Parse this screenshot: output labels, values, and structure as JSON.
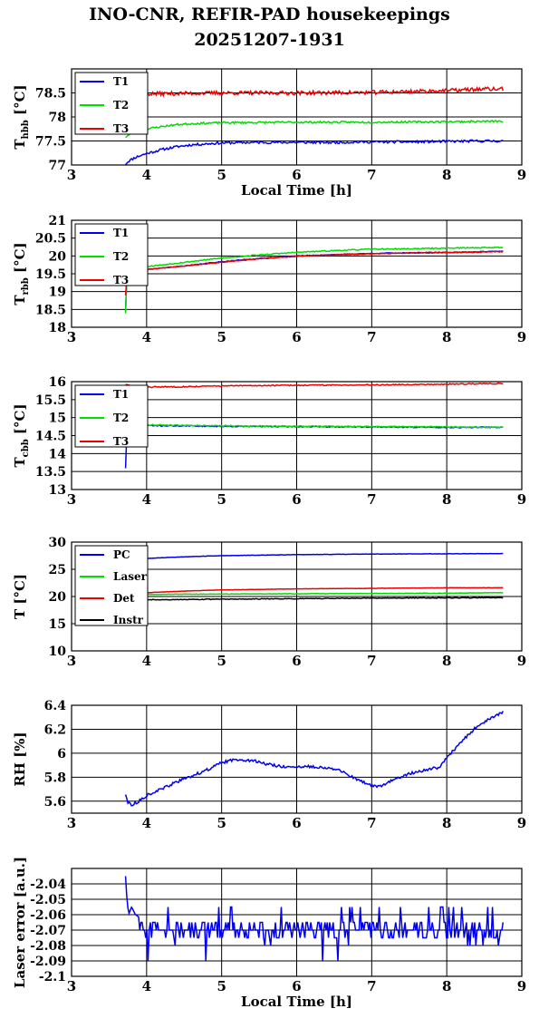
{
  "title_line1": "INO-CNR, REFIR-PAD housekeepings",
  "title_line2": "20251207-1931",
  "chart_data": [
    {
      "type": "line",
      "ylabel": "T",
      "ylabel_sub": "hbb",
      "ylabel_unit": "[°C]",
      "xlabel": "Local Time [h]",
      "xlim": [
        3,
        9
      ],
      "ylim": [
        77,
        79
      ],
      "xticks": [
        "3",
        "4",
        "5",
        "6",
        "7",
        "8",
        "9"
      ],
      "yticks": [
        "77",
        "77.5",
        "78",
        "78.5"
      ],
      "ytick_values": [
        77,
        77.5,
        78,
        78.5
      ],
      "grid": true,
      "legend_position": "top-left",
      "series": [
        {
          "name": "T1",
          "color": "#0000ee",
          "noise": 0.025,
          "seed": 11,
          "x": [
            3.72,
            3.76,
            3.85,
            4.0,
            4.2,
            4.4,
            4.6,
            4.8,
            5.0,
            5.5,
            6.0,
            6.5,
            7.0,
            7.5,
            8.0,
            8.5,
            8.75
          ],
          "y": [
            77.02,
            77.08,
            77.16,
            77.24,
            77.32,
            77.38,
            77.42,
            77.44,
            77.46,
            77.47,
            77.47,
            77.47,
            77.48,
            77.48,
            77.49,
            77.5,
            77.5
          ]
        },
        {
          "name": "T2",
          "color": "#00dd00",
          "noise": 0.02,
          "seed": 23,
          "x": [
            3.72,
            3.8,
            4.0,
            4.2,
            4.4,
            4.6,
            5.0,
            6.0,
            7.0,
            8.0,
            8.75
          ],
          "y": [
            77.58,
            77.66,
            77.75,
            77.8,
            77.84,
            77.86,
            77.88,
            77.89,
            77.89,
            77.9,
            77.91
          ]
        },
        {
          "name": "T3",
          "color": "#ee0000",
          "noise": 0.04,
          "seed": 37,
          "x": [
            3.72,
            4.0,
            5.0,
            6.0,
            7.0,
            7.5,
            8.0,
            8.5,
            8.75
          ],
          "y": [
            78.47,
            78.48,
            78.5,
            78.5,
            78.51,
            78.53,
            78.55,
            78.58,
            78.58
          ]
        }
      ]
    },
    {
      "type": "line",
      "ylabel": "T",
      "ylabel_sub": "rbb",
      "ylabel_unit": "[°C]",
      "xlabel": "",
      "xlim": [
        3,
        9
      ],
      "ylim": [
        18,
        21
      ],
      "xticks": [
        "3",
        "4",
        "5",
        "6",
        "7",
        "8",
        "9"
      ],
      "yticks": [
        "18",
        "18.5",
        "19",
        "19.5",
        "20",
        "20.5",
        "21"
      ],
      "ytick_values": [
        18,
        18.5,
        19,
        19.5,
        20,
        20.5,
        21
      ],
      "grid": true,
      "legend_position": "top-left",
      "series": [
        {
          "name": "T1",
          "color": "#0000ee",
          "noise": 0.01,
          "seed": 41,
          "x": [
            3.72,
            3.74,
            3.8,
            4.0,
            4.5,
            5.0,
            5.5,
            6.0,
            6.5,
            7.0,
            7.5,
            8.0,
            8.75
          ],
          "y": [
            18.45,
            19.55,
            19.6,
            19.62,
            19.72,
            19.84,
            19.93,
            20.0,
            20.04,
            20.07,
            20.09,
            20.1,
            20.13
          ]
        },
        {
          "name": "T2",
          "color": "#00dd00",
          "noise": 0.015,
          "seed": 53,
          "x": [
            3.72,
            3.74,
            3.8,
            4.0,
            4.5,
            5.0,
            5.5,
            6.0,
            6.5,
            7.0,
            7.5,
            8.0,
            8.75
          ],
          "y": [
            18.4,
            19.6,
            19.65,
            19.7,
            19.82,
            19.94,
            20.03,
            20.1,
            20.15,
            20.19,
            20.2,
            20.22,
            20.24
          ]
        },
        {
          "name": "T3",
          "color": "#ee0000",
          "noise": 0.01,
          "seed": 67,
          "x": [
            3.72,
            3.74,
            3.8,
            4.0,
            4.5,
            5.0,
            5.5,
            6.0,
            6.5,
            7.0,
            7.5,
            8.0,
            8.75
          ],
          "y": [
            18.9,
            19.5,
            19.58,
            19.62,
            19.72,
            19.82,
            19.92,
            19.99,
            20.03,
            20.06,
            20.08,
            20.09,
            20.12
          ]
        }
      ]
    },
    {
      "type": "line",
      "ylabel": "T",
      "ylabel_sub": "cbb",
      "ylabel_unit": "[°C]",
      "xlabel": "",
      "xlim": [
        3,
        9
      ],
      "ylim": [
        13,
        16
      ],
      "xticks": [
        "3",
        "4",
        "5",
        "6",
        "7",
        "8",
        "9"
      ],
      "yticks": [
        "13",
        "13.5",
        "14",
        "14.5",
        "15",
        "15.5",
        "16"
      ],
      "ytick_values": [
        13,
        13.5,
        14,
        14.5,
        15,
        15.5,
        16
      ],
      "grid": true,
      "legend_position": "top-left",
      "series": [
        {
          "name": "T1",
          "color": "#0000ee",
          "noise": 0.015,
          "seed": 71,
          "x": [
            3.72,
            3.73,
            3.74,
            3.8,
            4.0,
            5.0,
            6.0,
            7.0,
            8.0,
            8.75
          ],
          "y": [
            13.6,
            14.2,
            14.75,
            14.8,
            14.78,
            14.76,
            14.75,
            14.74,
            14.73,
            14.73
          ]
        },
        {
          "name": "T2",
          "color": "#00dd00",
          "noise": 0.015,
          "seed": 79,
          "x": [
            3.72,
            3.74,
            3.8,
            4.0,
            5.0,
            6.0,
            7.0,
            8.0,
            8.75
          ],
          "y": [
            14.5,
            14.78,
            14.82,
            14.8,
            14.77,
            14.76,
            14.75,
            14.74,
            14.73
          ]
        },
        {
          "name": "T3",
          "color": "#ee0000",
          "noise": 0.015,
          "seed": 83,
          "x": [
            3.72,
            3.8,
            4.0,
            4.5,
            5.0,
            6.0,
            7.0,
            8.0,
            8.75
          ],
          "y": [
            15.92,
            15.88,
            15.85,
            15.86,
            15.88,
            15.9,
            15.91,
            15.93,
            15.95
          ]
        }
      ]
    },
    {
      "type": "line",
      "ylabel": "T [°C]",
      "xlabel": "",
      "xlim": [
        3,
        9
      ],
      "ylim": [
        10,
        30
      ],
      "xticks": [
        "3",
        "4",
        "5",
        "6",
        "7",
        "8",
        "9"
      ],
      "yticks": [
        "10",
        "15",
        "20",
        "25",
        "30"
      ],
      "ytick_values": [
        10,
        15,
        20,
        25,
        30
      ],
      "grid": true,
      "legend_position": "top-left",
      "series": [
        {
          "name": "PC",
          "color": "#0000ee",
          "noise": 0.03,
          "seed": 89,
          "x": [
            3.72,
            3.8,
            4.0,
            4.5,
            5.0,
            6.0,
            7.0,
            8.0,
            8.75
          ],
          "y": [
            26.5,
            26.7,
            27.0,
            27.3,
            27.5,
            27.7,
            27.8,
            27.85,
            27.9
          ]
        },
        {
          "name": "Laser",
          "color": "#00dd00",
          "noise": 0.04,
          "seed": 97,
          "x": [
            3.72,
            4.0,
            5.0,
            6.0,
            7.0,
            8.0,
            8.75
          ],
          "y": [
            20.4,
            20.4,
            20.45,
            20.5,
            20.55,
            20.6,
            20.7
          ]
        },
        {
          "name": "Det",
          "color": "#ee0000",
          "noise": 0.02,
          "seed": 101,
          "x": [
            3.72,
            4.0,
            4.5,
            5.0,
            6.0,
            7.0,
            8.0,
            8.75
          ],
          "y": [
            20.5,
            20.7,
            21.0,
            21.2,
            21.4,
            21.5,
            21.6,
            21.6
          ]
        },
        {
          "name": "Instr",
          "color": "#000000",
          "noise": 0.06,
          "seed": 107,
          "x": [
            3.72,
            4.0,
            5.0,
            6.0,
            7.0,
            8.0,
            8.75
          ],
          "y": [
            19.3,
            19.4,
            19.5,
            19.6,
            19.7,
            19.75,
            19.8
          ]
        }
      ]
    },
    {
      "type": "line",
      "ylabel": "RH [%]",
      "xlabel": "",
      "xlim": [
        3,
        9
      ],
      "ylim": [
        5.5,
        6.4
      ],
      "xticks": [
        "3",
        "4",
        "5",
        "6",
        "7",
        "8",
        "9"
      ],
      "yticks": [
        "5.6",
        "5.8",
        "6",
        "6.2",
        "6.4"
      ],
      "ytick_values": [
        5.6,
        5.8,
        6,
        6.2,
        6.4
      ],
      "grid": true,
      "legend_position": "none",
      "series": [
        {
          "color": "#0000ee",
          "noise": 0.012,
          "seed": 113,
          "x": [
            3.72,
            3.75,
            3.8,
            3.9,
            4.0,
            4.2,
            4.4,
            4.6,
            4.8,
            5.0,
            5.2,
            5.4,
            5.6,
            5.8,
            6.0,
            6.2,
            6.4,
            6.6,
            6.8,
            7.0,
            7.1,
            7.3,
            7.5,
            7.7,
            7.9,
            8.0,
            8.2,
            8.4,
            8.6,
            8.75
          ],
          "y": [
            5.66,
            5.59,
            5.57,
            5.6,
            5.65,
            5.7,
            5.76,
            5.81,
            5.86,
            5.92,
            5.95,
            5.94,
            5.91,
            5.89,
            5.88,
            5.89,
            5.88,
            5.85,
            5.78,
            5.73,
            5.72,
            5.78,
            5.83,
            5.86,
            5.88,
            5.96,
            6.1,
            6.22,
            6.3,
            6.34
          ]
        }
      ]
    },
    {
      "type": "line",
      "ylabel": "Laser error [a.u.]",
      "xlabel": "Local Time [h]",
      "xlim": [
        3,
        9
      ],
      "ylim": [
        -2.1,
        -2.03
      ],
      "xticks": [
        "3",
        "4",
        "5",
        "6",
        "7",
        "8",
        "9"
      ],
      "yticks": [
        "-2.04",
        "-2.05",
        "-2.06",
        "-2.07",
        "-2.08",
        "-2.09",
        "-2.1"
      ],
      "ytick_values": [
        -2.04,
        -2.05,
        -2.06,
        -2.07,
        -2.08,
        -2.09,
        -2.1
      ],
      "grid": true,
      "legend_position": "none",
      "series": [
        {
          "color": "#0000ee",
          "noise": 0,
          "seed": 127,
          "quantized": true,
          "x": [
            3.72,
            3.73,
            3.76,
            3.8,
            3.85,
            4.0,
            4.5,
            5.0,
            5.5,
            6.0,
            6.5,
            7.0,
            7.5,
            8.0,
            8.5,
            8.75
          ],
          "y": [
            -2.035,
            -2.045,
            -2.06,
            -2.055,
            -2.06,
            -2.065,
            -2.07,
            -2.07,
            -2.07,
            -2.07,
            -2.07,
            -2.07,
            -2.07,
            -2.07,
            -2.07,
            -2.07
          ]
        }
      ]
    }
  ]
}
